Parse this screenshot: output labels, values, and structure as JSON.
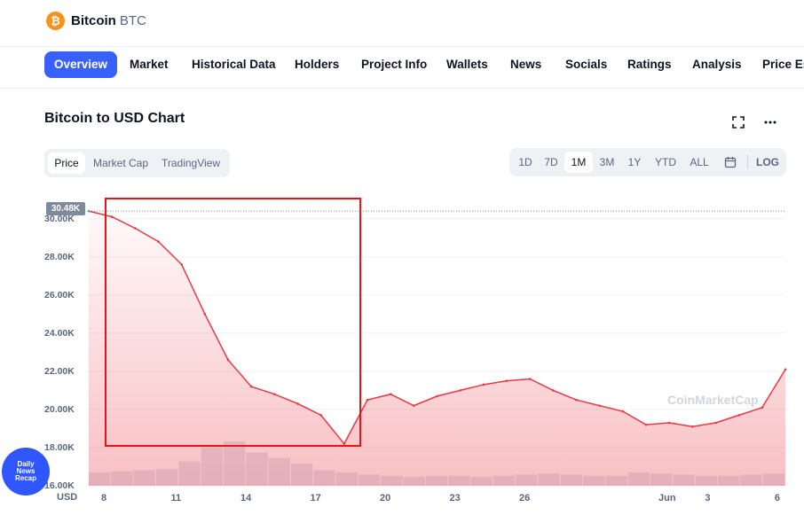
{
  "coin": {
    "logo_glyph": "₿",
    "name": "Bitcoin",
    "symbol": "BTC"
  },
  "tabs": [
    "Overview",
    "Market",
    "Historical Data",
    "Holders",
    "Project Info",
    "Wallets",
    "News",
    "Socials",
    "Ratings",
    "Analysis",
    "Price Es"
  ],
  "chart_title": "Bitcoin to USD Chart",
  "icons": {
    "fullscreen": "fullscreen-icon",
    "more": "more-icon",
    "calendar": "calendar-icon"
  },
  "view_toggle": [
    "Price",
    "Market Cap",
    "TradingView"
  ],
  "ranges": [
    "1D",
    "7D",
    "1M",
    "3M",
    "1Y",
    "YTD",
    "ALL"
  ],
  "log_label": "LOG",
  "current_price_badge": "30.48K",
  "currency_label": "USD",
  "watermark": "CoinMarketCap",
  "badge": {
    "line1": "Daily",
    "line2": "News",
    "line3": "Recap"
  },
  "colors": {
    "accent": "#3861fb",
    "down": "#ea3943",
    "up": "#16c784",
    "annotation": "#e8131b"
  },
  "chart_data": {
    "type": "area",
    "y_ticks": [
      "30.00K",
      "28.00K",
      "26.00K",
      "24.00K",
      "22.00K",
      "20.00K",
      "18.00K",
      "16.00K"
    ],
    "x_ticks": [
      "8",
      "11",
      "14",
      "17",
      "20",
      "23",
      "26",
      "Jun",
      "3",
      "6"
    ],
    "ylim": [
      16000,
      30500
    ],
    "x": [
      "May 8",
      "May 9",
      "May 10",
      "May 11",
      "May 12",
      "May 13",
      "May 14",
      "May 15",
      "May 16",
      "May 17",
      "May 18",
      "May 19",
      "May 20",
      "May 21",
      "May 22",
      "May 23",
      "May 24",
      "May 25",
      "May 26",
      "May 27",
      "May 28",
      "May 29",
      "May 30",
      "May 31",
      "Jun 1",
      "Jun 2",
      "Jun 3",
      "Jun 4",
      "Jun 5",
      "Jun 6",
      "Jun 7"
    ],
    "series": [
      {
        "values": [
          30400,
          30100,
          29500,
          28800,
          27600,
          25000,
          22600,
          21200,
          20800,
          20300,
          19700,
          18200,
          20500,
          20800,
          20200,
          20700,
          21000,
          21300,
          21500,
          21600,
          21000,
          20500,
          20200,
          19900,
          19200,
          19300,
          19100,
          19300,
          19700,
          20100,
          22100
        ]
      }
    ],
    "volume": [
      12,
      13,
      14,
      15,
      22,
      35,
      40,
      30,
      25,
      20,
      14,
      12,
      10,
      9,
      8,
      9,
      9,
      8,
      9,
      10,
      11,
      10,
      9,
      9,
      12,
      11,
      10,
      9,
      9,
      10,
      11
    ],
    "grid": true,
    "legend": "none"
  }
}
